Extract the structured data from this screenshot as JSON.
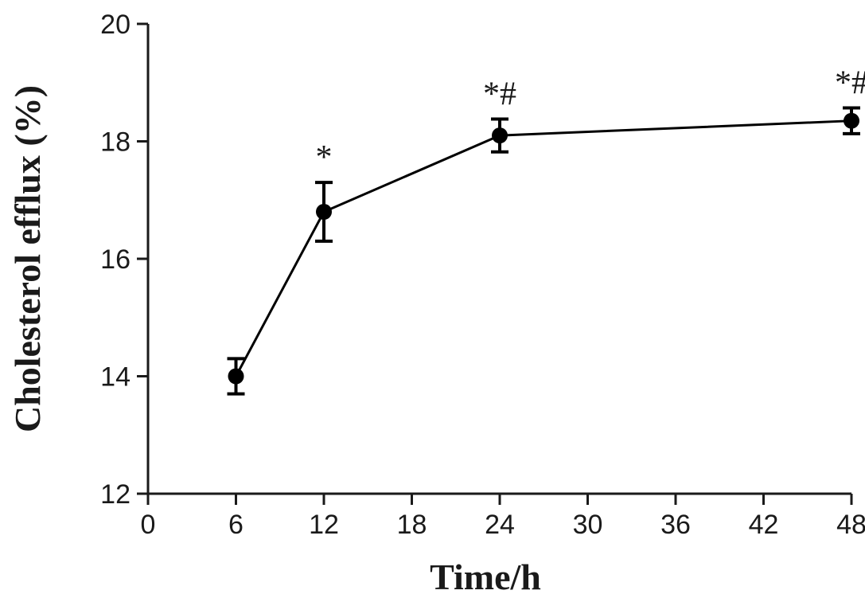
{
  "chart_data": {
    "type": "line",
    "title": "",
    "xlabel": "Time/h",
    "ylabel": "Cholesterol efflux (%)",
    "xlim": [
      0,
      48
    ],
    "ylim": [
      12,
      20
    ],
    "x_ticks": [
      "0",
      "6",
      "12",
      "18",
      "24",
      "30",
      "36",
      "42",
      "48"
    ],
    "y_ticks": [
      "12",
      "14",
      "16",
      "18",
      "20"
    ],
    "grid": false,
    "legend": "none",
    "series": [
      {
        "x": [
          6,
          12,
          24,
          48
        ],
        "values": [
          14.0,
          16.8,
          18.1,
          18.35
        ],
        "error": [
          0.3,
          0.5,
          0.28,
          0.22
        ],
        "annotations": [
          "",
          "*",
          "*#",
          "*#"
        ],
        "color": "#000000"
      }
    ]
  }
}
